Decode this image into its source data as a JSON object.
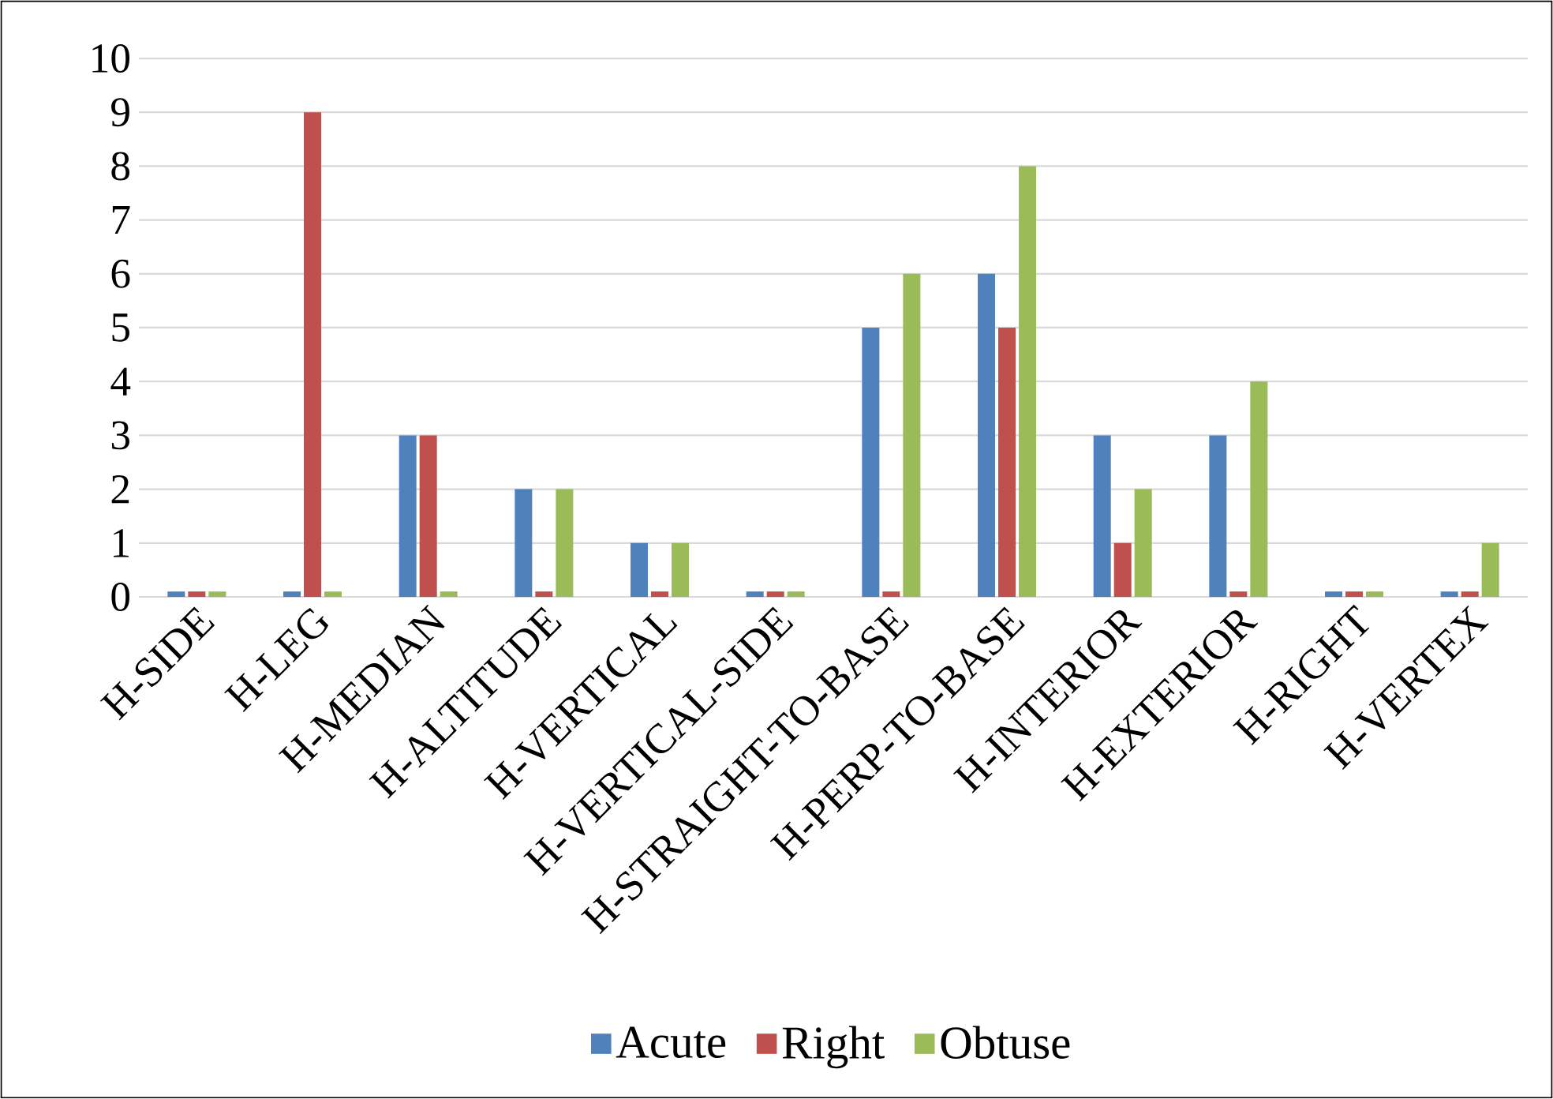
{
  "chart_data": {
    "type": "bar",
    "categories": [
      "H-SIDE",
      "H-LEG",
      "H-MEDIAN",
      "H-ALTITUDE",
      "H-VERTICAL",
      "H-VERTICAL-SIDE",
      "H-STRAIGHT-TO-BASE",
      "H-PERP-TO-BASE",
      "H-INTERIOR",
      "H-EXTERIOR",
      "H-RIGHT",
      "H-VERTEX"
    ],
    "series": [
      {
        "name": "Acute",
        "color": "#4f81bd",
        "values": [
          0.1,
          0.1,
          3,
          2,
          1,
          0.1,
          5,
          6,
          3,
          3,
          0.1,
          0.1
        ]
      },
      {
        "name": "Right",
        "color": "#c0504d",
        "values": [
          0.1,
          9,
          3,
          0.1,
          0.1,
          0.1,
          0.1,
          5,
          1,
          0.1,
          0.1,
          0.1
        ]
      },
      {
        "name": "Obtuse",
        "color": "#9bbb59",
        "values": [
          0.1,
          0.1,
          0.1,
          2,
          1,
          0.1,
          6,
          8,
          2,
          4,
          0.1,
          1
        ]
      }
    ],
    "ylim": [
      0,
      10
    ],
    "yticks": [
      0,
      1,
      2,
      3,
      4,
      5,
      6,
      7,
      8,
      9,
      10
    ],
    "grid": "y",
    "legend": "bottom"
  }
}
